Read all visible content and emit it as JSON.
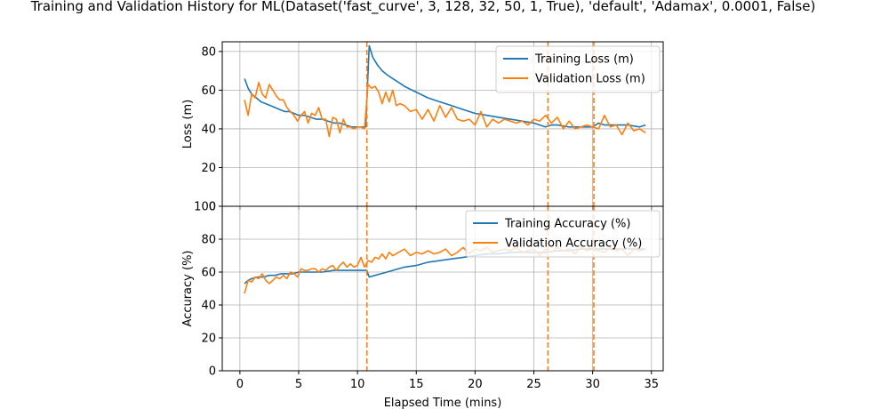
{
  "title": "Training and Validation History for ML(Dataset('fast_curve', 3, 128, 32, 50, 1, True), 'default', 'Adamax', 0.0001, False)",
  "colors": {
    "training": "#1f77b4",
    "validation": "#ff7f0e",
    "grid": "#b0b0b0"
  },
  "chart_data": [
    {
      "type": "line",
      "ylabel": "Loss (m)",
      "xlabel": "",
      "xlim": [
        -1.5,
        36.0
      ],
      "ylim": [
        0,
        85
      ],
      "xticks": [
        0,
        5,
        10,
        15,
        20,
        25,
        30,
        35
      ],
      "yticks": [
        0,
        20,
        40,
        60,
        80
      ],
      "grid": true,
      "legend_position": "top-right",
      "vlines": [
        10.8,
        26.2,
        30.1
      ],
      "series": [
        {
          "name": "Training Loss (m)",
          "color": "#1f77b4",
          "x": [
            0.4,
            0.7,
            1.0,
            1.4,
            1.8,
            2.2,
            2.6,
            3.0,
            3.4,
            3.8,
            4.2,
            4.6,
            5.0,
            5.5,
            6.0,
            6.5,
            7.0,
            7.5,
            8.0,
            8.5,
            9.0,
            9.5,
            10.0,
            10.4,
            10.7,
            11.0,
            11.3,
            11.7,
            12.1,
            12.5,
            13.0,
            13.5,
            14.0,
            15.0,
            16.0,
            17.0,
            18.0,
            19.0,
            20.0,
            21.0,
            22.0,
            23.0,
            24.0,
            25.0,
            25.5,
            26.0,
            26.5,
            27.0,
            28.0,
            29.0,
            29.6,
            30.0,
            30.5,
            31.0,
            32.0,
            33.0,
            34.0,
            34.5
          ],
          "y": [
            66,
            61,
            58,
            56,
            54,
            53,
            52,
            51,
            50,
            49,
            49,
            48,
            47,
            47,
            46,
            45,
            45,
            44,
            43,
            43,
            42,
            41,
            41,
            41,
            41,
            83,
            77,
            73,
            70,
            68,
            66,
            64,
            62,
            59,
            56,
            54,
            52,
            50,
            48,
            47,
            46,
            45,
            44,
            43,
            42,
            41,
            42,
            42,
            41,
            41,
            41,
            41,
            43,
            42,
            42,
            42,
            41,
            42
          ]
        },
        {
          "name": "Validation Loss (m)",
          "color": "#ff7f0e",
          "x": [
            0.4,
            0.7,
            1.0,
            1.3,
            1.6,
            1.9,
            2.2,
            2.5,
            2.8,
            3.1,
            3.4,
            3.7,
            4.0,
            4.3,
            4.6,
            4.9,
            5.2,
            5.5,
            5.8,
            6.1,
            6.4,
            6.7,
            7.0,
            7.3,
            7.6,
            7.9,
            8.2,
            8.5,
            8.8,
            9.1,
            9.4,
            9.7,
            10.0,
            10.3,
            10.6,
            10.9,
            11.2,
            11.5,
            11.8,
            12.1,
            12.4,
            12.7,
            13.0,
            13.3,
            13.6,
            14.0,
            14.5,
            15.0,
            15.5,
            16.0,
            16.5,
            17.0,
            17.5,
            18.0,
            18.5,
            19.0,
            19.5,
            20.0,
            20.5,
            21.0,
            21.5,
            22.0,
            22.5,
            23.0,
            23.5,
            24.0,
            24.5,
            25.0,
            25.5,
            26.0,
            26.5,
            27.0,
            27.5,
            28.0,
            28.5,
            29.0,
            29.5,
            30.0,
            30.5,
            31.0,
            31.5,
            32.0,
            32.5,
            33.0,
            33.5,
            34.0,
            34.5
          ],
          "y": [
            55,
            47,
            58,
            56,
            64,
            58,
            56,
            63,
            60,
            57,
            55,
            55,
            51,
            49,
            47,
            44,
            47,
            49,
            43,
            48,
            47,
            51,
            45,
            45,
            36,
            46,
            45,
            38,
            45,
            41,
            41,
            40,
            41,
            41,
            40,
            63,
            61,
            62,
            59,
            53,
            59,
            54,
            60,
            52,
            53,
            52,
            49,
            50,
            45,
            50,
            44,
            52,
            46,
            51,
            45,
            44,
            45,
            42,
            49,
            41,
            45,
            43,
            45,
            44,
            43,
            44,
            42,
            45,
            44,
            47,
            43,
            46,
            40,
            44,
            40,
            41,
            42,
            41,
            40,
            47,
            41,
            42,
            37,
            43,
            39,
            40,
            38
          ]
        }
      ]
    },
    {
      "type": "line",
      "ylabel": "Accuracy (%)",
      "xlabel": "Elapsed Time (mins)",
      "xlim": [
        -1.5,
        36.0
      ],
      "ylim": [
        0,
        100
      ],
      "xticks": [
        0,
        5,
        10,
        15,
        20,
        25,
        30,
        35
      ],
      "yticks": [
        0,
        20,
        40,
        60,
        80,
        100
      ],
      "grid": true,
      "legend_position": "top-right",
      "vlines": [
        10.8,
        26.2,
        30.1
      ],
      "series": [
        {
          "name": "Training Accuracy (%)",
          "color": "#1f77b4",
          "x": [
            0.4,
            0.7,
            1.0,
            1.5,
            2.0,
            2.5,
            3.0,
            3.5,
            4.0,
            4.5,
            5.0,
            6.0,
            7.0,
            8.0,
            9.0,
            10.0,
            10.5,
            10.8,
            11.0,
            11.5,
            12.0,
            13.0,
            14.0,
            15.0,
            16.0,
            17.0,
            18.0,
            19.0,
            20.0,
            21.0,
            22.0,
            23.0,
            24.0,
            25.0,
            26.0,
            27.0,
            28.0,
            29.0,
            30.0,
            31.0,
            32.0,
            33.0,
            34.0,
            34.5
          ],
          "y": [
            53,
            55,
            56,
            57,
            57,
            58,
            58,
            59,
            59,
            59,
            60,
            60,
            60,
            61,
            61,
            61,
            61,
            61,
            57,
            58,
            59,
            61,
            63,
            64,
            66,
            67,
            68,
            69,
            70,
            71,
            71,
            72,
            72,
            72,
            72,
            73,
            73,
            74,
            74,
            74,
            74,
            74,
            74,
            74
          ]
        },
        {
          "name": "Validation Accuracy (%)",
          "color": "#ff7f0e",
          "x": [
            0.4,
            0.7,
            1.0,
            1.3,
            1.6,
            1.9,
            2.2,
            2.5,
            2.8,
            3.1,
            3.4,
            3.7,
            4.0,
            4.3,
            4.6,
            4.9,
            5.2,
            5.5,
            5.8,
            6.1,
            6.4,
            6.7,
            7.0,
            7.3,
            7.6,
            7.9,
            8.2,
            8.5,
            8.8,
            9.1,
            9.4,
            9.7,
            10.0,
            10.3,
            10.6,
            10.9,
            11.2,
            11.5,
            11.8,
            12.1,
            12.4,
            12.7,
            13.0,
            13.5,
            14.0,
            14.5,
            15.0,
            15.5,
            16.0,
            16.5,
            17.0,
            17.5,
            18.0,
            18.5,
            19.0,
            19.5,
            20.0,
            20.5,
            21.0,
            21.5,
            22.0,
            22.5,
            23.0,
            23.5,
            24.0,
            24.5,
            25.0,
            25.5,
            26.0,
            26.5,
            27.0,
            27.5,
            28.0,
            28.5,
            29.0,
            29.5,
            30.0,
            30.5,
            31.0,
            31.5,
            32.0,
            32.5,
            33.0,
            33.5,
            34.0,
            34.5
          ],
          "y": [
            47,
            55,
            54,
            57,
            56,
            59,
            55,
            53,
            55,
            57,
            56,
            58,
            56,
            60,
            59,
            57,
            62,
            61,
            61,
            62,
            62,
            60,
            62,
            61,
            63,
            64,
            61,
            64,
            66,
            63,
            65,
            63,
            64,
            69,
            63,
            67,
            66,
            69,
            68,
            71,
            68,
            72,
            70,
            72,
            74,
            70,
            72,
            71,
            73,
            71,
            72,
            74,
            70,
            72,
            75,
            71,
            74,
            73,
            75,
            72,
            73,
            74,
            73,
            75,
            72,
            73,
            74,
            70,
            74,
            72,
            75,
            73,
            74,
            71,
            75,
            73,
            74,
            73,
            72,
            75,
            73,
            74,
            70,
            74,
            73,
            74
          ]
        }
      ]
    }
  ]
}
